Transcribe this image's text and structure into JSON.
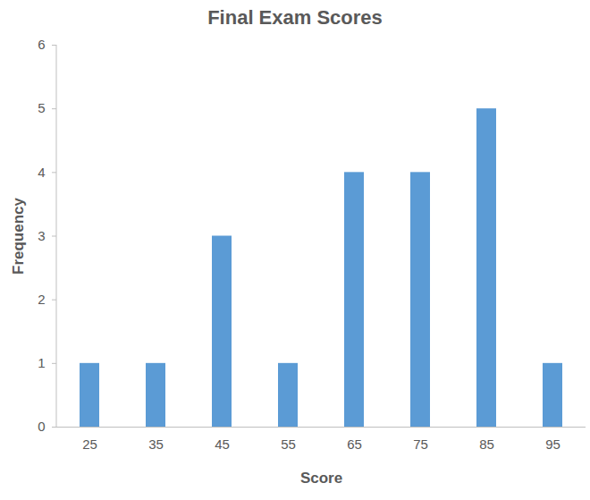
{
  "chart_data": {
    "type": "bar",
    "title": "Final Exam Scores",
    "x_label": "Score",
    "y_label": "Frequency",
    "categories": [
      "25",
      "35",
      "45",
      "55",
      "65",
      "75",
      "85",
      "95"
    ],
    "values": [
      1,
      1,
      3,
      1,
      4,
      4,
      5,
      1
    ],
    "color": "#5b9bd5",
    "ylim": [
      0,
      6
    ],
    "yticks": [
      0,
      1,
      2,
      3,
      4,
      5,
      6
    ],
    "grid": false
  }
}
